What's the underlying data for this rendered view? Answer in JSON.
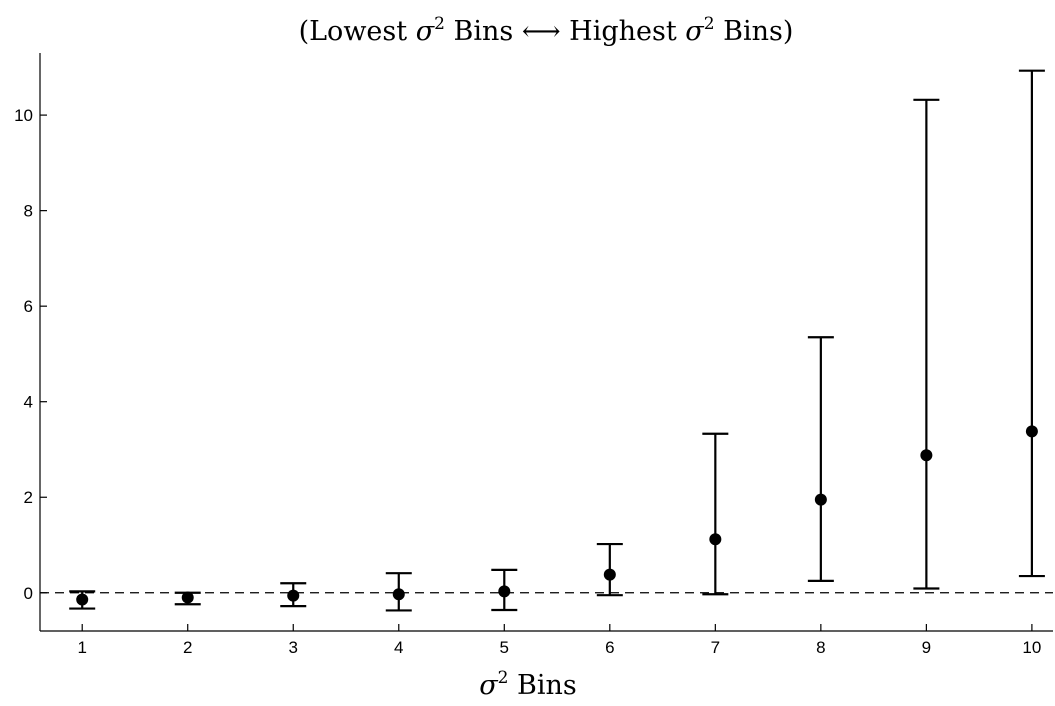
{
  "chart_data": {
    "type": "scatter",
    "title_parts": {
      "open": "(Lowest ",
      "sym1": "σ",
      "sup1": "2",
      "mid": " Bins ⟷ Highest ",
      "sym2": "σ",
      "sup2": "2",
      "close": " Bins)"
    },
    "xlabel_parts": {
      "sym": "σ",
      "sup": "2",
      "rest": " Bins"
    },
    "ylabel": "",
    "categories": [
      "1",
      "2",
      "3",
      "4",
      "5",
      "6",
      "7",
      "8",
      "9",
      "10"
    ],
    "x": [
      1,
      2,
      3,
      4,
      5,
      6,
      7,
      8,
      9,
      10
    ],
    "values": [
      -0.14,
      -0.1,
      -0.06,
      -0.03,
      0.03,
      0.38,
      1.12,
      1.95,
      2.88,
      3.38
    ],
    "err_low": [
      -0.33,
      -0.24,
      -0.28,
      -0.37,
      -0.36,
      -0.05,
      -0.03,
      0.25,
      0.09,
      0.35
    ],
    "err_high": [
      0.03,
      0.0,
      0.2,
      0.41,
      0.48,
      1.02,
      3.33,
      5.35,
      10.32,
      10.93
    ],
    "xlim": [
      0.6,
      10.2
    ],
    "ylim": [
      -0.8,
      11.3
    ],
    "yticks": [
      0,
      2,
      4,
      6,
      8,
      10
    ],
    "ytick_labels": [
      "0",
      "2",
      "4",
      "6",
      "8",
      "10"
    ],
    "reference_line": {
      "y": 0,
      "style": "dashed"
    },
    "grid": false,
    "legend": "none",
    "colors": {
      "marker": "#000000",
      "axis": "#000000"
    }
  }
}
